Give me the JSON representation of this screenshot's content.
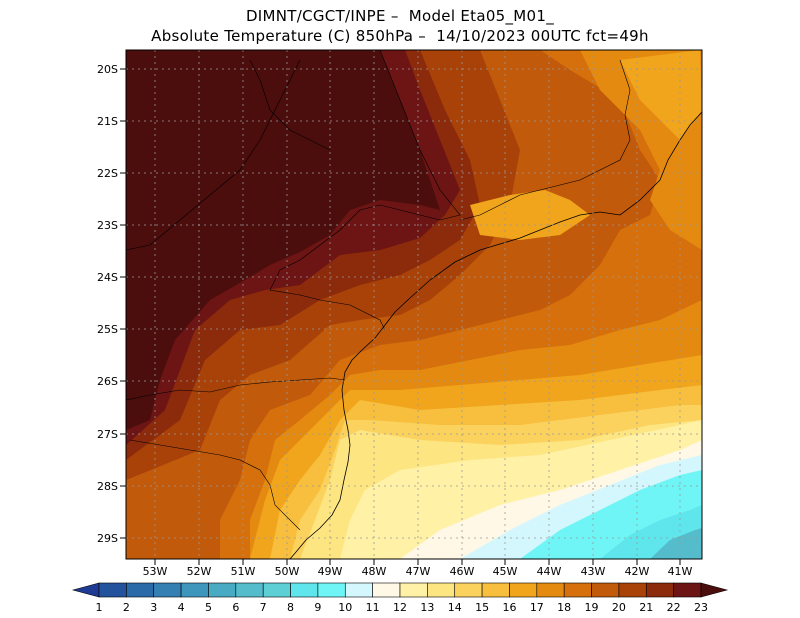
{
  "header": {
    "line1": "DIMNT/CGCT/INPE –  Model Eta05_M01_",
    "line2": "Absolute Temperature (C) 850hPa –  14/10/2023 00UTC fct=49h"
  },
  "axes": {
    "lat_labels": [
      "20S",
      "21S",
      "22S",
      "23S",
      "24S",
      "25S",
      "26S",
      "27S",
      "28S",
      "29S"
    ],
    "lon_labels": [
      "53W",
      "52W",
      "51W",
      "50W",
      "49W",
      "48W",
      "47W",
      "46W",
      "45W",
      "44W",
      "43W",
      "42W",
      "41W"
    ]
  },
  "colorbar": {
    "labels": [
      "1",
      "2",
      "3",
      "4",
      "5",
      "6",
      "7",
      "8",
      "9",
      "10",
      "11",
      "12",
      "13",
      "14",
      "15",
      "16",
      "17",
      "18",
      "19",
      "20",
      "21",
      "22",
      "23"
    ],
    "colors": [
      "#1f3a93",
      "#24539e",
      "#2b6aa8",
      "#3580b3",
      "#3f96bd",
      "#49aac4",
      "#55bccb",
      "#5fcfd6",
      "#5fe6ec",
      "#6ff5f5",
      "#d3f7fc",
      "#fff8e6",
      "#fff1a6",
      "#fde582",
      "#fbd25e",
      "#f7bf3d",
      "#f1a51d",
      "#e58a10",
      "#d5700c",
      "#c15a0a",
      "#a84208",
      "#8c2a0c",
      "#6d1414",
      "#4c0d0d"
    ]
  }
}
